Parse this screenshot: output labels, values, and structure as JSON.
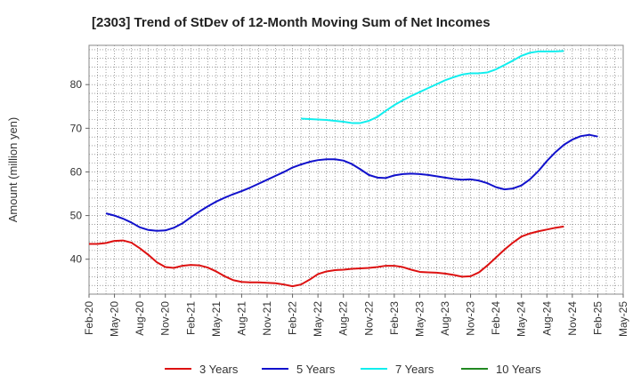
{
  "chart_data": {
    "type": "line",
    "title": "[2303]  Trend of StDev of 12-Month Moving Sum of Net Incomes",
    "xlabel": "",
    "ylabel": "Amount (million yen)",
    "ylim": [
      32,
      89
    ],
    "yticks": [
      40,
      50,
      60,
      70,
      80
    ],
    "x_ticks": [
      "Feb-20",
      "May-20",
      "Aug-20",
      "Nov-20",
      "Feb-21",
      "May-21",
      "Aug-21",
      "Nov-21",
      "Feb-22",
      "May-22",
      "Aug-22",
      "Nov-22",
      "Feb-23",
      "May-23",
      "Aug-23",
      "Nov-23",
      "Feb-24",
      "May-24",
      "Aug-24",
      "Nov-24",
      "Feb-25",
      "May-25"
    ],
    "grid": true,
    "legend_position": "bottom",
    "series": [
      {
        "name": "3 Years",
        "color": "#dd1111",
        "start": "Feb-20",
        "values": [
          43.5,
          43.5,
          43.7,
          44.2,
          44.3,
          43.8,
          42.5,
          41.0,
          39.3,
          38.2,
          38.0,
          38.5,
          38.7,
          38.6,
          38.1,
          37.2,
          36.1,
          35.2,
          34.8,
          34.7,
          34.7,
          34.6,
          34.5,
          34.2,
          33.8,
          34.2,
          35.3,
          36.6,
          37.2,
          37.5,
          37.6,
          37.8,
          37.9,
          38.0,
          38.2,
          38.5,
          38.5,
          38.2,
          37.6,
          37.1,
          37.0,
          36.9,
          36.7,
          36.4,
          36.0,
          36.1,
          37.0,
          38.6,
          40.4,
          42.2,
          43.8,
          45.2,
          45.9,
          46.4,
          46.8,
          47.2,
          47.5
        ]
      },
      {
        "name": "5 Years",
        "color": "#1111cc",
        "start": "Feb-20",
        "values": [
          null,
          null,
          50.5,
          50.0,
          49.3,
          48.4,
          47.3,
          46.7,
          46.5,
          46.6,
          47.2,
          48.2,
          49.6,
          50.9,
          52.1,
          53.2,
          54.1,
          54.9,
          55.6,
          56.4,
          57.3,
          58.2,
          59.1,
          60.0,
          61.0,
          61.7,
          62.3,
          62.7,
          62.9,
          62.9,
          62.6,
          61.8,
          60.6,
          59.3,
          58.7,
          58.6,
          59.2,
          59.5,
          59.6,
          59.5,
          59.3,
          59.0,
          58.7,
          58.4,
          58.2,
          58.3,
          58.0,
          57.4,
          56.5,
          56.0,
          56.2,
          56.9,
          58.3,
          60.2,
          62.5,
          64.5,
          66.2,
          67.4,
          68.2,
          68.5,
          68.1
        ]
      },
      {
        "name": "7 Years",
        "color": "#11eeee",
        "start": "Feb-20",
        "values": [
          null,
          null,
          null,
          null,
          null,
          null,
          null,
          null,
          null,
          null,
          null,
          null,
          null,
          null,
          null,
          null,
          null,
          null,
          null,
          null,
          null,
          null,
          null,
          null,
          null,
          72.2,
          72.1,
          72.0,
          71.9,
          71.7,
          71.5,
          71.2,
          71.2,
          71.7,
          72.6,
          74.0,
          75.3,
          76.4,
          77.4,
          78.3,
          79.2,
          80.1,
          81.0,
          81.7,
          82.3,
          82.6,
          82.6,
          82.8,
          83.5,
          84.5,
          85.5,
          86.6,
          87.3,
          87.6,
          87.6,
          87.6,
          87.7
        ]
      },
      {
        "name": "10 Years",
        "color": "#228822",
        "start": "Feb-20",
        "values": []
      }
    ]
  }
}
